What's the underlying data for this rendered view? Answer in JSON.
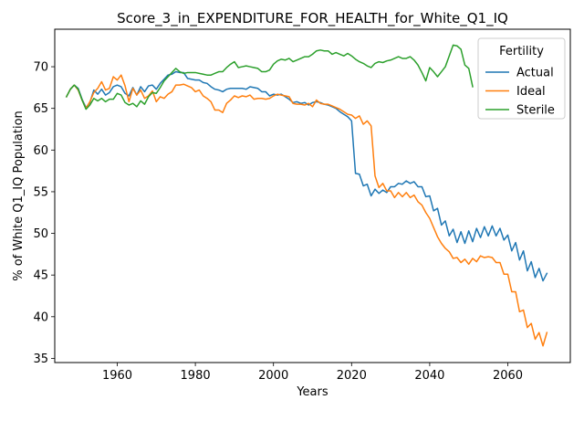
{
  "chart_data": {
    "type": "line",
    "title": "Score_3_in_EXPENDITURE_FOR_HEALTH_for_White_Q1_IQ",
    "xlabel": "Years",
    "ylabel": "% of White Q1_IQ Population",
    "xlim": [
      1944,
      2076
    ],
    "ylim": [
      34.5,
      74.5
    ],
    "xticks": [
      1960,
      1980,
      2000,
      2020,
      2040,
      2060
    ],
    "yticks": [
      35,
      40,
      45,
      50,
      55,
      60,
      65,
      70
    ],
    "grid": false,
    "legend": {
      "title": "Fertility",
      "position": "top-right"
    },
    "series": [
      {
        "name": "Actual",
        "color": "#1f77b4",
        "x": [
          1947,
          1948,
          1949,
          1950,
          1951,
          1952,
          1953,
          1954,
          1955,
          1956,
          1957,
          1958,
          1959,
          1960,
          1961,
          1962,
          1963,
          1964,
          1965,
          1966,
          1967,
          1968,
          1969,
          1970,
          1971,
          1972,
          1973,
          1974,
          1975,
          1976,
          1977,
          1978,
          1979,
          1980,
          1981,
          1982,
          1983,
          1984,
          1985,
          1986,
          1987,
          1988,
          1989,
          1990,
          1991,
          1992,
          1993,
          1994,
          1995,
          1996,
          1997,
          1998,
          1999,
          2000,
          2001,
          2002,
          2003,
          2004,
          2005,
          2006,
          2007,
          2008,
          2009,
          2010,
          2011,
          2012,
          2013,
          2014,
          2015,
          2016,
          2017,
          2018,
          2019,
          2020,
          2021,
          2022,
          2023,
          2024,
          2025,
          2026,
          2027,
          2028,
          2029,
          2030,
          2031,
          2032,
          2033,
          2034,
          2035,
          2036,
          2037,
          2038,
          2039,
          2040,
          2041,
          2042,
          2043,
          2044,
          2045,
          2046,
          2047,
          2048,
          2049,
          2050,
          2051,
          2052,
          2053,
          2054,
          2055,
          2056,
          2057,
          2058,
          2059,
          2060,
          2061,
          2062,
          2063,
          2064,
          2065,
          2066,
          2067,
          2068,
          2069,
          2070
        ],
        "values": [
          66.4,
          67.3,
          67.8,
          67.4,
          66.1,
          65.1,
          65.7,
          67.2,
          66.7,
          67.3,
          66.6,
          66.9,
          67.6,
          67.8,
          67.6,
          66.8,
          66.5,
          67.5,
          66.6,
          67.6,
          67.0,
          67.7,
          67.8,
          67.3,
          68.0,
          68.5,
          69.0,
          69.1,
          69.4,
          69.3,
          69.3,
          68.6,
          68.5,
          68.4,
          68.4,
          68.1,
          68.0,
          67.6,
          67.3,
          67.2,
          67.0,
          67.3,
          67.4,
          67.4,
          67.4,
          67.4,
          67.3,
          67.6,
          67.5,
          67.4,
          67.0,
          67.0,
          66.5,
          66.7,
          66.6,
          66.7,
          66.4,
          66.1,
          65.7,
          65.8,
          65.6,
          65.7,
          65.4,
          65.7,
          65.8,
          65.7,
          65.5,
          65.4,
          65.2,
          65.0,
          64.6,
          64.3,
          64.0,
          63.5,
          57.2,
          57.1,
          55.7,
          55.9,
          54.5,
          55.3,
          54.8,
          55.2,
          54.9,
          55.6,
          55.6,
          56.0,
          55.9,
          56.3,
          56.0,
          56.2,
          55.6,
          55.6,
          54.4,
          54.5,
          52.7,
          53.0,
          51.0,
          51.5,
          49.7,
          50.5,
          48.9,
          50.2,
          48.8,
          50.3,
          49.0,
          50.6,
          49.5,
          50.8,
          49.7,
          50.9,
          49.7,
          50.6,
          49.2,
          49.8,
          47.9,
          48.9,
          46.8,
          47.9,
          45.5,
          46.6,
          44.7,
          45.8,
          44.3,
          45.2
        ]
      },
      {
        "name": "Ideal",
        "color": "#ff7f0e",
        "x": [
          1947,
          1948,
          1949,
          1950,
          1951,
          1952,
          1953,
          1954,
          1955,
          1956,
          1957,
          1958,
          1959,
          1960,
          1961,
          1962,
          1963,
          1964,
          1965,
          1966,
          1967,
          1968,
          1969,
          1970,
          1971,
          1972,
          1973,
          1974,
          1975,
          1976,
          1977,
          1978,
          1979,
          1980,
          1981,
          1982,
          1983,
          1984,
          1985,
          1986,
          1987,
          1988,
          1989,
          1990,
          1991,
          1992,
          1993,
          1994,
          1995,
          1996,
          1997,
          1998,
          1999,
          2000,
          2001,
          2002,
          2003,
          2004,
          2005,
          2006,
          2007,
          2008,
          2009,
          2010,
          2011,
          2012,
          2013,
          2014,
          2015,
          2016,
          2017,
          2018,
          2019,
          2020,
          2021,
          2022,
          2023,
          2024,
          2025,
          2026,
          2027,
          2028,
          2029,
          2030,
          2031,
          2032,
          2033,
          2034,
          2035,
          2036,
          2037,
          2038,
          2039,
          2040,
          2041,
          2042,
          2043,
          2044,
          2045,
          2046,
          2047,
          2048,
          2049,
          2050,
          2051,
          2052,
          2053,
          2054,
          2055,
          2056,
          2057,
          2058,
          2059,
          2060,
          2061,
          2062,
          2063,
          2064,
          2065,
          2066,
          2067,
          2068,
          2069,
          2070
        ],
        "values": [
          66.4,
          67.3,
          67.8,
          67.2,
          66.0,
          65.0,
          65.8,
          66.9,
          67.4,
          68.2,
          67.2,
          67.4,
          68.8,
          68.4,
          69.0,
          67.7,
          65.8,
          67.4,
          66.6,
          67.2,
          66.2,
          66.5,
          67.1,
          65.8,
          66.4,
          66.2,
          66.7,
          67.0,
          67.8,
          67.8,
          67.9,
          67.7,
          67.5,
          67.0,
          67.2,
          66.5,
          66.2,
          65.8,
          64.8,
          64.8,
          64.5,
          65.6,
          66.0,
          66.5,
          66.3,
          66.5,
          66.4,
          66.6,
          66.1,
          66.2,
          66.2,
          66.1,
          66.2,
          66.5,
          66.7,
          66.6,
          66.5,
          66.4,
          65.6,
          65.5,
          65.5,
          65.4,
          65.6,
          65.2,
          66.0,
          65.6,
          65.5,
          65.5,
          65.3,
          65.1,
          64.9,
          64.6,
          64.3,
          64.2,
          63.8,
          64.1,
          63.1,
          63.5,
          62.9,
          56.9,
          55.5,
          56.0,
          55.1,
          55.1,
          54.3,
          54.9,
          54.4,
          54.9,
          54.3,
          54.6,
          53.8,
          53.4,
          52.5,
          51.8,
          50.7,
          49.6,
          48.8,
          48.2,
          47.8,
          47.0,
          47.1,
          46.5,
          46.9,
          46.3,
          47.0,
          46.6,
          47.3,
          47.1,
          47.2,
          47.1,
          46.5,
          46.5,
          45.1,
          45.1,
          43.0,
          43.0,
          40.6,
          40.8,
          38.7,
          39.2,
          37.3,
          38.1,
          36.5,
          38.1
        ]
      },
      {
        "name": "Sterile",
        "color": "#2ca02c",
        "x": [
          1947,
          1948,
          1949,
          1950,
          1951,
          1952,
          1953,
          1954,
          1955,
          1956,
          1957,
          1958,
          1959,
          1960,
          1961,
          1962,
          1963,
          1964,
          1965,
          1966,
          1967,
          1968,
          1969,
          1970,
          1971,
          1972,
          1973,
          1974,
          1975,
          1976,
          1977,
          1978,
          1979,
          1980,
          1981,
          1982,
          1983,
          1984,
          1985,
          1986,
          1987,
          1988,
          1989,
          1990,
          1991,
          1992,
          1993,
          1994,
          1995,
          1996,
          1997,
          1998,
          1999,
          2000,
          2001,
          2002,
          2003,
          2004,
          2005,
          2006,
          2007,
          2008,
          2009,
          2010,
          2011,
          2012,
          2013,
          2014,
          2015,
          2016,
          2017,
          2018,
          2019,
          2020,
          2021,
          2022,
          2023,
          2024,
          2025,
          2026,
          2027,
          2028,
          2029,
          2030,
          2031,
          2032,
          2033,
          2034,
          2035,
          2036,
          2037,
          2038,
          2039,
          2040,
          2041,
          2042,
          2043,
          2044,
          2045,
          2046,
          2047,
          2048,
          2049,
          2050,
          2051
        ],
        "values": [
          66.4,
          67.3,
          67.8,
          67.3,
          66.0,
          64.9,
          65.4,
          66.2,
          65.9,
          66.2,
          65.8,
          66.1,
          66.1,
          66.8,
          66.6,
          65.7,
          65.4,
          65.6,
          65.2,
          65.9,
          65.5,
          66.4,
          66.9,
          66.8,
          67.5,
          68.3,
          68.8,
          69.3,
          69.8,
          69.4,
          69.2,
          69.3,
          69.3,
          69.3,
          69.2,
          69.1,
          69.0,
          69.0,
          69.2,
          69.4,
          69.4,
          69.9,
          70.3,
          70.6,
          69.9,
          70.0,
          70.1,
          70.0,
          69.9,
          69.8,
          69.4,
          69.4,
          69.6,
          70.3,
          70.7,
          70.9,
          70.8,
          71.0,
          70.6,
          70.8,
          71.0,
          71.2,
          71.2,
          71.5,
          71.9,
          72.0,
          71.9,
          71.9,
          71.5,
          71.7,
          71.5,
          71.3,
          71.6,
          71.3,
          70.9,
          70.6,
          70.4,
          70.1,
          69.9,
          70.4,
          70.6,
          70.5,
          70.7,
          70.8,
          71.0,
          71.2,
          71.0,
          71.0,
          71.2,
          70.8,
          70.2,
          69.3,
          68.3,
          69.9,
          69.4,
          68.8,
          69.4,
          70.0,
          71.3,
          72.6,
          72.5,
          72.1,
          70.2,
          69.8,
          67.6
        ]
      }
    ]
  }
}
